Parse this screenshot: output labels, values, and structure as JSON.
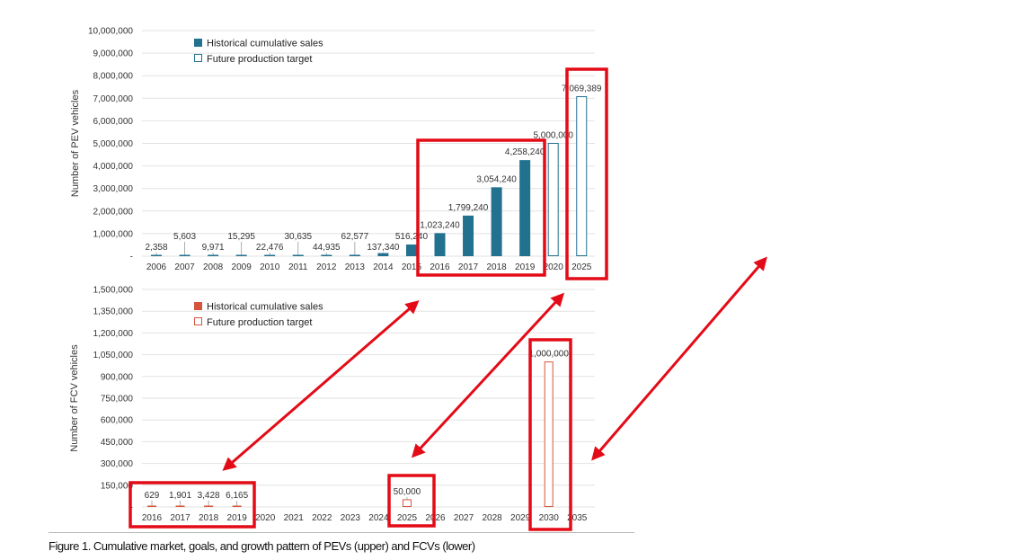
{
  "caption": "Figure 1. Cumulative market, goals, and growth pattern of PEVs (upper) and FCVs (lower)",
  "colors": {
    "pev": "#21718f",
    "fcv": "#d4553c",
    "highlight": "#e30b17",
    "grid": "#e2e2e2"
  },
  "chart_data": [
    {
      "type": "bar",
      "ylabel": "Number of PEV vehicles",
      "ylim": [
        0,
        10000000
      ],
      "yticks": [
        "-",
        "1,000,000",
        "2,000,000",
        "3,000,000",
        "4,000,000",
        "5,000,000",
        "6,000,000",
        "7,000,000",
        "8,000,000",
        "9,000,000",
        "10,000,000"
      ],
      "categories": [
        "2006",
        "2007",
        "2008",
        "2009",
        "2010",
        "2011",
        "2012",
        "2013",
        "2014",
        "2015",
        "2016",
        "2017",
        "2018",
        "2019",
        "2020",
        "2025"
      ],
      "values": [
        2358,
        5603,
        9971,
        15295,
        22476,
        30635,
        44935,
        62577,
        137340,
        516240,
        1023240,
        1799240,
        3054240,
        4258240,
        5000000,
        7069389
      ],
      "value_labels": [
        "2,358",
        "5,603",
        "9,971",
        "15,295",
        "22,476",
        "30,635",
        "44,935",
        "62,577",
        "137,340",
        "516,240",
        "1,023,240",
        "1,799,240",
        "3,054,240",
        "4,258,240",
        "5,000,000",
        "7,069,389"
      ],
      "kinds": [
        "h",
        "h",
        "h",
        "h",
        "h",
        "h",
        "h",
        "h",
        "h",
        "h",
        "h",
        "h",
        "h",
        "h",
        "f",
        "f"
      ],
      "legend": [
        "Historical cumulative sales",
        "Future production target"
      ],
      "legend_position": "top-left",
      "grid": true
    },
    {
      "type": "bar",
      "ylabel": "Number of FCV vehicles",
      "ylim": [
        0,
        1500000
      ],
      "yticks": [
        "-",
        "150,000",
        "300,000",
        "450,000",
        "600,000",
        "750,000",
        "900,000",
        "1,050,000",
        "1,200,000",
        "1,350,000",
        "1,500,000"
      ],
      "categories": [
        "2016",
        "2017",
        "2018",
        "2019",
        "2020",
        "2021",
        "2022",
        "2023",
        "2024",
        "2025",
        "2026",
        "2027",
        "2028",
        "2029",
        "2030",
        "2035"
      ],
      "values": [
        629,
        1901,
        3428,
        6165,
        null,
        null,
        null,
        null,
        null,
        50000,
        null,
        null,
        null,
        null,
        1000000,
        null
      ],
      "value_labels": [
        "629",
        "1,901",
        "3,428",
        "6,165",
        "",
        "",
        "",
        "",
        "",
        "50,000",
        "",
        "",
        "",
        "",
        "1,000,000",
        ""
      ],
      "kinds": [
        "h",
        "h",
        "h",
        "h",
        "",
        "",
        "",
        "",
        "",
        "f",
        "",
        "",
        "",
        "",
        "f",
        ""
      ],
      "legend": [
        "Historical cumulative sales",
        "Future production target"
      ],
      "legend_position": "top-left",
      "grid": true
    }
  ]
}
